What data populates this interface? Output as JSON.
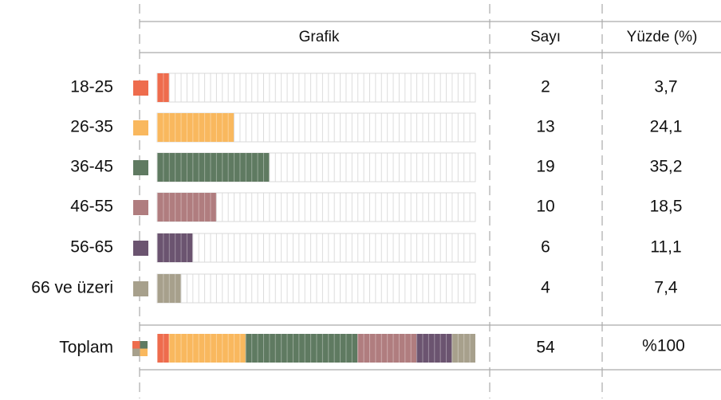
{
  "chart_data": {
    "type": "bar",
    "orientation": "horizontal",
    "graph_header": "Grafik",
    "categories": [
      "18-25",
      "26-35",
      "36-45",
      "46-55",
      "56-65",
      "66 ve üzeri"
    ],
    "colors": [
      "#ee6c4d",
      "#f9b85e",
      "#5f7a61",
      "#b07d7f",
      "#6b5470",
      "#a7a08c"
    ],
    "xlim": [
      0,
      54
    ],
    "series": [
      {
        "name": "Sayı",
        "values": [
          2,
          13,
          19,
          10,
          6,
          4
        ]
      },
      {
        "name": "Yüzde (%)",
        "values": [
          3.7,
          24.1,
          35.2,
          18.5,
          11.1,
          7.4
        ],
        "value_labels": [
          "3,7",
          "24,1",
          "35,2",
          "18,5",
          "11,1",
          "7,4"
        ]
      }
    ],
    "total": {
      "label": "Toplam",
      "count": 54,
      "percent": 100,
      "percent_label": "%100"
    }
  }
}
